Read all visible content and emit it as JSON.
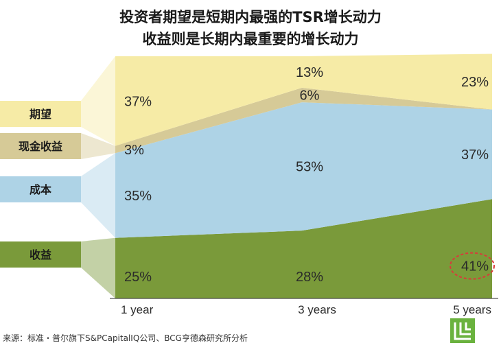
{
  "chart_data": {
    "type": "area",
    "title_line1": "投资者期望是短期内最强的TSR增长动力",
    "title_line2": "收益则是长期内最重要的增长动力",
    "categories": [
      "1 year",
      "3 years",
      "5 years"
    ],
    "stacking": "percent",
    "series": [
      {
        "name": "收益",
        "values": [
          25,
          28,
          41
        ],
        "labels": [
          "25%",
          "28%",
          "41%"
        ],
        "color": "#7a9a3a"
      },
      {
        "name": "成本",
        "values": [
          35,
          53,
          37
        ],
        "labels": [
          "35%",
          "53%",
          "37%"
        ],
        "color": "#aed3e6"
      },
      {
        "name": "现金收益",
        "values": [
          3,
          6,
          0
        ],
        "labels": [
          "3%",
          "6%",
          ""
        ],
        "color": "#d6ca97"
      },
      {
        "name": "期望",
        "values": [
          37,
          13,
          23
        ],
        "labels": [
          "37%",
          "13%",
          "23%"
        ],
        "color": "#f6eba6"
      }
    ],
    "legend_order": [
      "期望",
      "现金收益",
      "成本",
      "收益"
    ],
    "highlight": {
      "series": "收益",
      "category": "5 years",
      "label": "41%"
    },
    "source": "来源：标准・普尔旗下S&PCapitalIQ公司、BCG亨德森研究所分析"
  }
}
